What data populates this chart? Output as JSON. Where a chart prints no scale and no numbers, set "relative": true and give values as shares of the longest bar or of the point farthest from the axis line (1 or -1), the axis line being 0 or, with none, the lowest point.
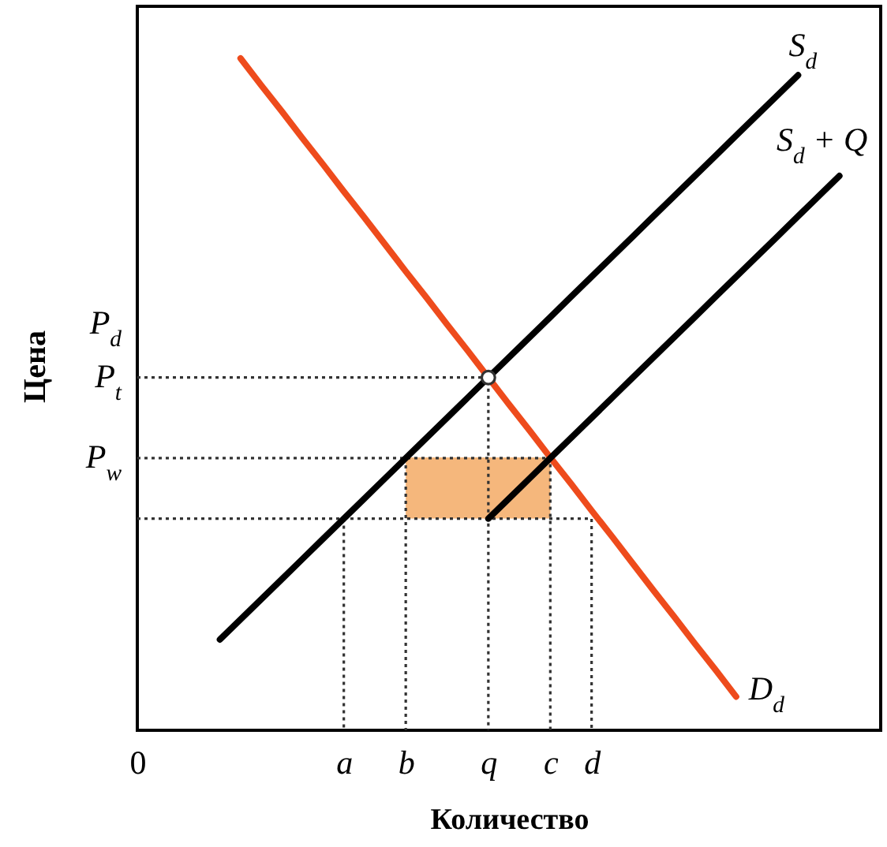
{
  "chart_data": {
    "type": "line",
    "relative": true,
    "xlabel": "Количество",
    "ylabel": "Цена",
    "categories": [
      "0",
      null,
      null,
      null,
      null,
      null,
      null,
      null,
      null,
      null,
      "a",
      null,
      null,
      "b",
      null,
      null,
      null,
      "q",
      null,
      null,
      "c",
      null,
      "d",
      null,
      null,
      null,
      null,
      null,
      null,
      null,
      null,
      null,
      null,
      null,
      null,
      null,
      null
    ],
    "series": [
      {
        "color": "#f5b77c",
        "values": [
          null,
          null,
          null,
          null,
          null,
          null,
          null,
          null,
          null,
          null,
          null,
          null,
          null,
          0.405,
          0.405,
          0.405,
          0.405,
          0.405,
          0.405,
          0.405,
          0.405,
          null,
          null,
          null,
          null,
          null,
          null,
          null,
          null,
          null,
          null,
          null,
          null,
          null,
          null,
          null,
          null
        ],
        "lower": [
          null,
          null,
          null,
          null,
          null,
          null,
          null,
          null,
          null,
          null,
          null,
          null,
          null,
          0.315,
          0.315,
          0.315,
          0.315,
          0.315,
          0.315,
          0.315,
          0.315,
          null,
          null,
          null,
          null,
          null,
          null,
          null,
          null,
          null,
          null,
          null,
          null,
          null,
          null,
          null,
          null
        ],
        "upper": [
          null,
          null,
          null,
          null,
          null,
          null,
          null,
          null,
          null,
          null,
          null,
          null,
          null,
          0.405,
          0.405,
          0.405,
          0.405,
          0.405,
          0.405,
          0.405,
          0.405,
          null,
          null,
          null,
          null,
          null,
          null,
          null,
          null,
          null,
          null,
          null,
          null,
          null,
          null,
          null,
          null
        ]
      },
      {
        "color": "#333333",
        "line_style": "dotted",
        "x": [
          "0",
          "q",
          "q"
        ],
        "values": [
          0.525,
          0.525,
          0
        ]
      },
      {
        "color": "#333333",
        "line_style": "dotted",
        "x": [
          "0",
          "c",
          "c"
        ],
        "values": [
          0.405,
          0.405,
          0
        ]
      },
      {
        "color": "#333333",
        "line_style": "dotted",
        "x": [
          "0",
          "d",
          "d"
        ],
        "values": [
          0.315,
          0.315,
          0
        ]
      },
      {
        "color": "#333333",
        "line_style": "dotted",
        "x": [
          "a",
          "a"
        ],
        "values": [
          0.315,
          0
        ]
      },
      {
        "color": "#333333",
        "line_style": "dotted",
        "x": [
          "b",
          "b"
        ],
        "values": [
          0.405,
          0
        ]
      },
      {
        "name": "D$_{d}$",
        "color": "#ee4b1c",
        "values": [
          null,
          null,
          null,
          null,
          null,
          1,
          0.96,
          0.921,
          0.881,
          0.842,
          0.802,
          0.763,
          0.723,
          0.683,
          0.644,
          0.604,
          0.565,
          0.525,
          0.485,
          0.446,
          0.406,
          0.367,
          0.327,
          0.288,
          0.248,
          0.208,
          0.169,
          0.129,
          0.09,
          0.05,
          null,
          null,
          null,
          null,
          null,
          null,
          null
        ]
      },
      {
        "name": "S$_{d}$",
        "color": "#000000",
        "values": [
          null,
          null,
          null,
          null,
          0.135,
          0.165,
          0.195,
          0.225,
          0.255,
          0.285,
          0.315,
          0.345,
          0.375,
          0.405,
          0.435,
          0.465,
          0.495,
          0.525,
          0.555,
          0.585,
          0.615,
          0.645,
          0.675,
          0.705,
          0.735,
          0.765,
          0.795,
          0.825,
          0.855,
          0.885,
          0.915,
          0.945,
          0.975,
          null,
          null,
          null,
          null
        ]
      },
      {
        "name": "S$_{d}$ + Q",
        "color": "#000000",
        "values": [
          null,
          null,
          null,
          null,
          null,
          null,
          null,
          null,
          null,
          null,
          null,
          null,
          null,
          null,
          null,
          null,
          null,
          0.315,
          0.345,
          0.375,
          0.405,
          0.435,
          0.465,
          0.495,
          0.525,
          0.555,
          0.585,
          0.615,
          0.645,
          0.675,
          0.705,
          0.735,
          0.765,
          0.795,
          0.825,
          null,
          null
        ]
      },
      {
        "type": "scatter",
        "marker": "circle",
        "color": "#333333",
        "x": [
          "q"
        ],
        "values": [
          0.525
        ]
      }
    ],
    "annotations": [
      "P$_{d}$",
      {
        "text": "P$_{t}$",
        "x": "0",
        "y": 0.525
      },
      {
        "text": "P$_{w}$",
        "x": "0",
        "y": 0.405
      }
    ]
  }
}
